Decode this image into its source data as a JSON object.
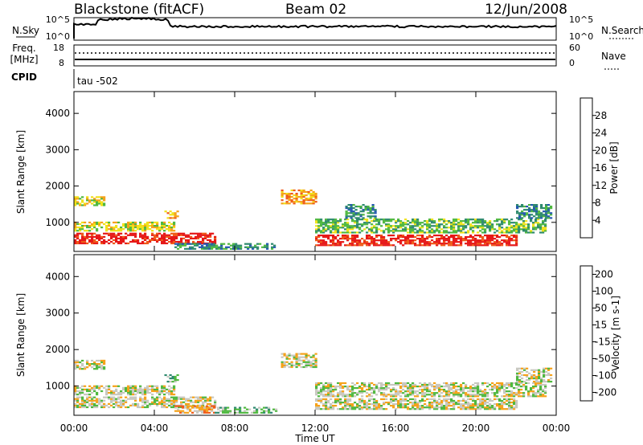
{
  "header": {
    "station": "Blackstone (fitACF)",
    "beam": "Beam 02",
    "date": "12/Jun/2008"
  },
  "noise_panel": {
    "left_label": "N.Sky",
    "right_label": "N.Search",
    "ticks_left": [
      "10^5",
      "10^0"
    ],
    "ticks_right": [
      "10^5",
      "10^0"
    ]
  },
  "freq_panel": {
    "left_label_top": "Freq.",
    "left_label_unit": "[MHz]",
    "right_label": "Nave",
    "ticks_left": [
      "18",
      "8"
    ],
    "ticks_right": [
      "60",
      "0"
    ],
    "cpid_label": "CPID",
    "cpid_value": "tau -502"
  },
  "axes": {
    "ylabel": "Slant Range [km]",
    "xlabel": "Time UT",
    "yticks": [
      1000,
      2000,
      3000,
      4000
    ],
    "ylim": [
      200,
      4600
    ],
    "xticks": [
      "00:00",
      "04:00",
      "08:00",
      "12:00",
      "16:00",
      "20:00",
      "00:00"
    ],
    "xlim_hours": [
      0,
      24
    ]
  },
  "chart_data": [
    {
      "type": "heatmap",
      "title": "Power [dB]",
      "colorbar_label": "Power [dB]",
      "colorbar_ticks": [
        4,
        8,
        12,
        16,
        20,
        24,
        28
      ],
      "colors": [
        "#1f3fff",
        "#2357b0",
        "#2e8a6e",
        "#4fb83f",
        "#f0e21a",
        "#f5a21a",
        "#ef5a18",
        "#e61818"
      ],
      "x_range_hours": [
        0,
        24
      ],
      "y_range_km": [
        200,
        4600
      ],
      "echo_regions": [
        {
          "t": [
            0.0,
            7.0
          ],
          "r": [
            400,
            700
          ],
          "level": 7
        },
        {
          "t": [
            0.0,
            5.0
          ],
          "r": [
            750,
            1000
          ],
          "level": 4
        },
        {
          "t": [
            0.0,
            1.5
          ],
          "r": [
            1450,
            1700
          ],
          "level": 4
        },
        {
          "t": [
            4.5,
            5.2
          ],
          "r": [
            1100,
            1300
          ],
          "level": 5
        },
        {
          "t": [
            5.0,
            10.0
          ],
          "r": [
            250,
            400
          ],
          "level": 2
        },
        {
          "t": [
            10.3,
            12.0
          ],
          "r": [
            1500,
            1900
          ],
          "level": 5
        },
        {
          "t": [
            12.0,
            22.0
          ],
          "r": [
            350,
            650
          ],
          "level": 7
        },
        {
          "t": [
            12.0,
            23.5
          ],
          "r": [
            700,
            1100
          ],
          "level": 3
        },
        {
          "t": [
            13.5,
            15.0
          ],
          "r": [
            1100,
            1500
          ],
          "level": 2
        },
        {
          "t": [
            22.0,
            23.8
          ],
          "r": [
            1100,
            1500
          ],
          "level": 2
        }
      ]
    },
    {
      "type": "heatmap",
      "title": "Velocity [m s-1]",
      "colorbar_label": "Velocity [m s-1]",
      "colorbar_ticks": [
        200,
        100,
        50,
        15,
        -15,
        -50,
        -100,
        -200
      ],
      "colors": [
        "#1f3fff",
        "#2357b0",
        "#2e8a6e",
        "#4fb83f",
        "#c8c8c0",
        "#f5a21a",
        "#ef5a18",
        "#e61818"
      ],
      "x_range_hours": [
        0,
        24
      ],
      "y_range_km": [
        200,
        4600
      ],
      "echo_regions": [
        {
          "t": [
            0.0,
            7.0
          ],
          "r": [
            400,
            700
          ],
          "level": 4
        },
        {
          "t": [
            0.0,
            5.0
          ],
          "r": [
            750,
            1000
          ],
          "level": 4
        },
        {
          "t": [
            0.0,
            1.5
          ],
          "r": [
            1450,
            1700
          ],
          "level": 4
        },
        {
          "t": [
            4.5,
            5.2
          ],
          "r": [
            1100,
            1300
          ],
          "level": 3
        },
        {
          "t": [
            5.0,
            7.0
          ],
          "r": [
            250,
            450
          ],
          "level": 5
        },
        {
          "t": [
            7.0,
            10.0
          ],
          "r": [
            250,
            400
          ],
          "level": 3
        },
        {
          "t": [
            10.3,
            12.0
          ],
          "r": [
            1500,
            1900
          ],
          "level": 4
        },
        {
          "t": [
            12.0,
            22.0
          ],
          "r": [
            350,
            650
          ],
          "level": 4
        },
        {
          "t": [
            12.0,
            23.5
          ],
          "r": [
            700,
            1100
          ],
          "level": 4
        },
        {
          "t": [
            22.0,
            23.8
          ],
          "r": [
            1100,
            1500
          ],
          "level": 4
        }
      ]
    }
  ]
}
